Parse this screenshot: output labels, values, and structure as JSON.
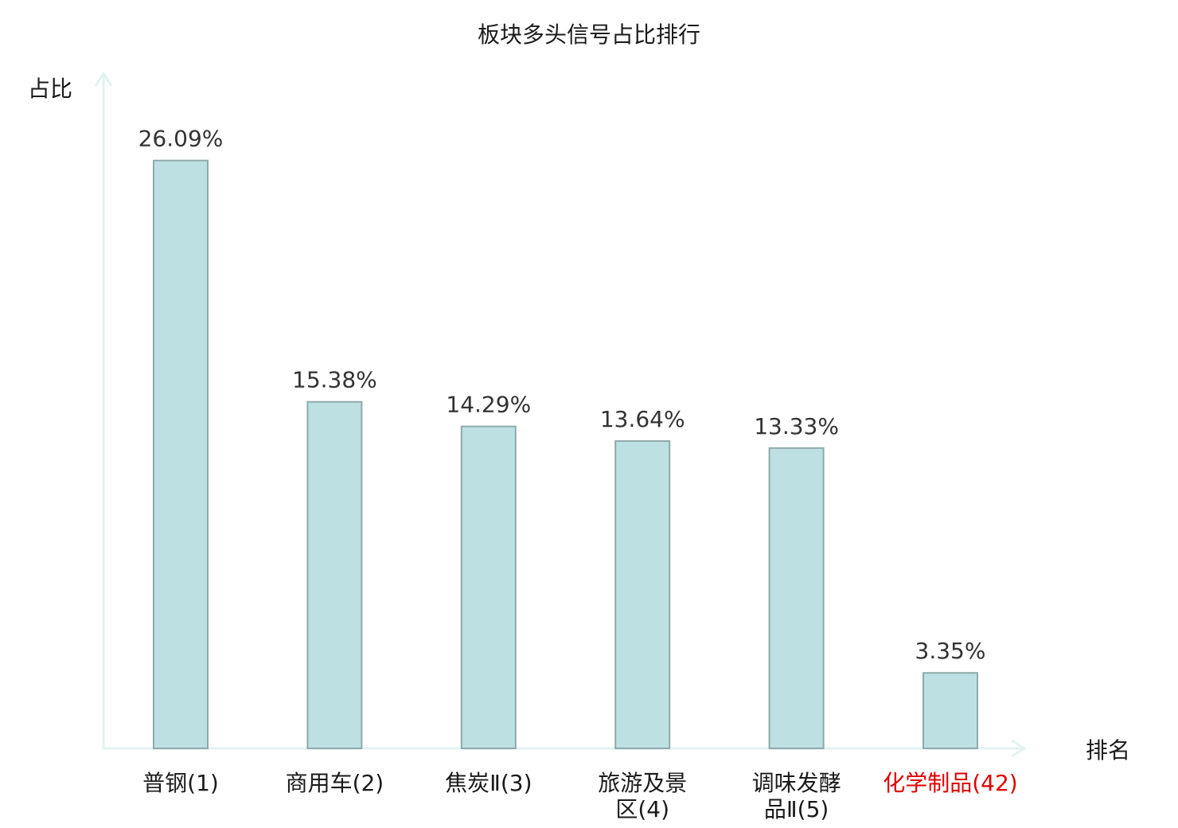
{
  "chart_data": {
    "type": "bar",
    "title": "板块多头信号占比排行",
    "xlabel": "排名",
    "ylabel": "占比",
    "categories": [
      [
        "普钢(1)"
      ],
      [
        "商用车(2)"
      ],
      [
        "焦炭Ⅱ(3)"
      ],
      [
        "旅游及景",
        "区(4)"
      ],
      [
        "调味发酵",
        "品Ⅱ(5)"
      ],
      [
        "化学制品(42)"
      ]
    ],
    "values": [
      26.09,
      15.38,
      14.29,
      13.64,
      13.33,
      3.35
    ],
    "value_labels": [
      "26.09%",
      "15.38%",
      "14.29%",
      "13.64%",
      "13.33%",
      "3.35%"
    ],
    "highlight_index": 5,
    "ylim": [
      0,
      27
    ],
    "grid": false,
    "legend": "none",
    "colors": {
      "bar_fill": "#bde0e3",
      "bar_stroke": "#8fa9ab",
      "axis": "#e2f3f1",
      "label": "#1a1a1a",
      "value_label": "#333333",
      "highlight": "#e00000"
    }
  }
}
